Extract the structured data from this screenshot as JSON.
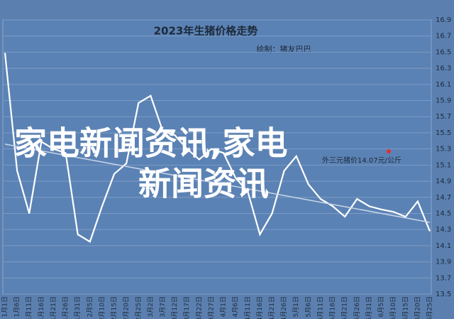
{
  "chart_data": {
    "type": "line",
    "title": "2023年生猪价格走势",
    "subtitle": "绘制：猪友巴巴",
    "annotation": "外三元猪价14.07元/公斤",
    "watermark": [
      "家电新闻资讯,家电",
      "新闻资讯"
    ],
    "categories": [
      "1月1日",
      "1月6日",
      "1月11日",
      "1月16日",
      "1月21日",
      "1月26日",
      "1月31日",
      "2月5日",
      "2月10日",
      "2月15日",
      "2月20日",
      "2月25日",
      "3月2日",
      "3月7日",
      "3月12日",
      "3月17日",
      "3月22日",
      "3月27日",
      "4月1日",
      "4月6日",
      "4月11日",
      "4月16日",
      "4月21日",
      "4月26日",
      "5月1日",
      "5月6日",
      "5月11日",
      "5月16日",
      "5月21日",
      "5月26日",
      "5月31日",
      "6月5日",
      "6月10日",
      "6月15日",
      "6月20日",
      "6月25日"
    ],
    "series": [
      {
        "color": "#ffffff",
        "values": [
          16.49,
          15.03,
          14.5,
          15.39,
          15.3,
          15.25,
          14.24,
          14.15,
          14.59,
          14.99,
          15.12,
          15.87,
          15.96,
          15.52,
          15.47,
          15.3,
          15.17,
          15.3,
          15.25,
          14.94,
          14.77,
          14.24,
          14.5,
          15.03,
          15.21,
          14.86,
          14.68,
          14.59,
          14.46,
          14.68,
          14.59,
          14.55,
          14.52,
          14.46,
          14.65,
          14.28
        ]
      },
      {
        "color": "#c9d6e8",
        "values": [
          15.36,
          null,
          null,
          null,
          null,
          null,
          null,
          null,
          null,
          null,
          null,
          null,
          null,
          null,
          null,
          null,
          null,
          null,
          null,
          null,
          null,
          null,
          null,
          null,
          null,
          null,
          null,
          null,
          null,
          null,
          null,
          null,
          null,
          null,
          null,
          14.39
        ]
      }
    ],
    "ylim": [
      13.5,
      16.9
    ],
    "yticks": [
      13.5,
      13.7,
      13.9,
      14.1,
      14.3,
      14.5,
      14.7,
      14.9,
      15.1,
      15.3,
      15.5,
      15.7,
      15.9,
      16.1,
      16.3,
      16.5,
      16.7,
      16.9
    ],
    "grid": true
  }
}
